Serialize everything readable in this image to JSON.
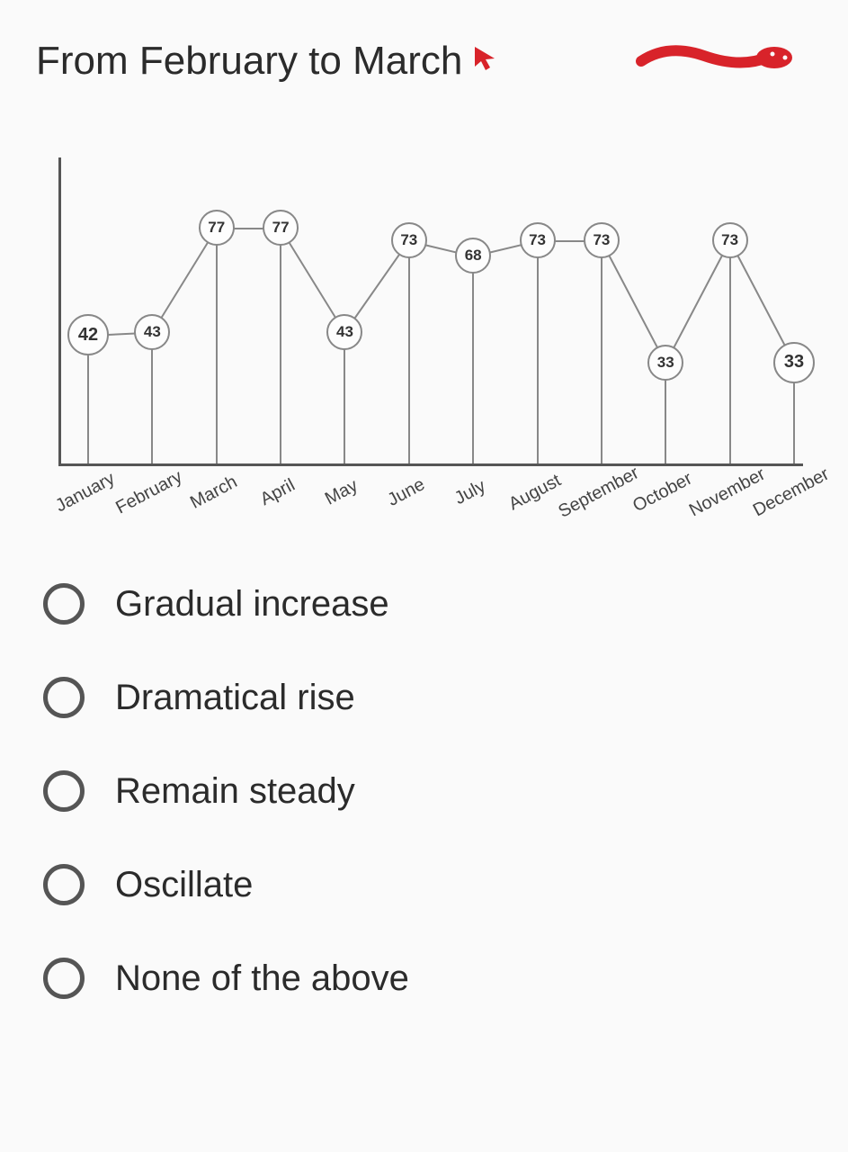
{
  "question_title": "From February to March",
  "chart": {
    "type": "line",
    "categories": [
      "January",
      "February",
      "March",
      "April",
      "May",
      "June",
      "July",
      "August",
      "September",
      "October",
      "November",
      "December"
    ],
    "values": [
      42,
      43,
      77,
      77,
      43,
      73,
      68,
      73,
      73,
      33,
      73,
      33
    ],
    "ylim": [
      0,
      100
    ],
    "bubble_small_diameter": 36,
    "bubble_large_diameter": 42,
    "bubble_border_color": "#888888",
    "bubble_fill_color": "#fdfdfd",
    "bubble_text_color": "#333333",
    "line_color": "#888888",
    "line_width": 2,
    "stem_color": "#888888",
    "axis_color": "#555555",
    "background_color": "#fafafa",
    "label_fontsize": 20,
    "label_color": "#444444",
    "label_rotation_deg": -28,
    "value_fontsize_small": 17,
    "value_fontsize_large": 20
  },
  "options": [
    {
      "label": "Gradual increase"
    },
    {
      "label": "Dramatical rise"
    },
    {
      "label": "Remain steady"
    },
    {
      "label": "Oscillate"
    },
    {
      "label": "None of the above"
    }
  ],
  "annotation_color": "#d8232a"
}
